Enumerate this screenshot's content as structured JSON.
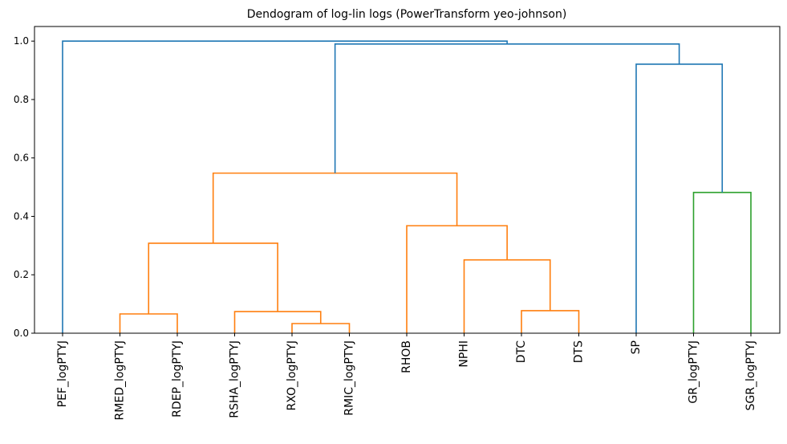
{
  "chart_data": {
    "type": "dendrogram",
    "title": "Dendogram of log-lin logs (PowerTransform yeo-johnson)",
    "xlabel": "",
    "ylabel": "",
    "ylim": [
      0,
      1.05
    ],
    "yticks": [
      "0.0",
      "0.2",
      "0.4",
      "0.6",
      "0.8",
      "1.0"
    ],
    "grid": false,
    "colors": {
      "above_threshold": "#1f77b4",
      "cluster_1": "#ff7f0e",
      "cluster_2": "#2ca02c"
    },
    "leaves": [
      "PEF_logPTYJ",
      "RMED_logPTYJ",
      "RDEP_logPTYJ",
      "RSHA_logPTYJ",
      "RXO_logPTYJ",
      "RMIC_logPTYJ",
      "RHOB",
      "NPHI",
      "DTC",
      "DTS",
      "SP",
      "GR_logPTYJ",
      "SGR_logPTYJ"
    ],
    "merges": [
      {
        "left": "RXO_logPTYJ",
        "right": "RMIC_logPTYJ",
        "height": 0.033,
        "color": "cluster_1"
      },
      {
        "left": "RMED_logPTYJ",
        "right": "RDEP_logPTYJ",
        "height": 0.066,
        "color": "cluster_1"
      },
      {
        "left": "RSHA_logPTYJ",
        "right": "m0",
        "height": 0.074,
        "color": "cluster_1"
      },
      {
        "left": "DTC",
        "right": "DTS",
        "height": 0.077,
        "color": "cluster_1"
      },
      {
        "left": "NPHI",
        "right": "m3",
        "height": 0.251,
        "color": "cluster_1"
      },
      {
        "left": "m1",
        "right": "m2",
        "height": 0.308,
        "color": "cluster_1"
      },
      {
        "left": "RHOB",
        "right": "m4",
        "height": 0.368,
        "color": "cluster_1"
      },
      {
        "left": "GR_logPTYJ",
        "right": "SGR_logPTYJ",
        "height": 0.482,
        "color": "cluster_2"
      },
      {
        "left": "m5",
        "right": "m6",
        "height": 0.548,
        "color": "cluster_1"
      },
      {
        "left": "SP",
        "right": "m7",
        "height": 0.921,
        "color": "above_threshold"
      },
      {
        "left": "m8",
        "right": "m9",
        "height": 0.99,
        "color": "above_threshold"
      },
      {
        "left": "PEF_logPTYJ",
        "right": "m10",
        "height": 1.0,
        "color": "above_threshold"
      }
    ]
  }
}
